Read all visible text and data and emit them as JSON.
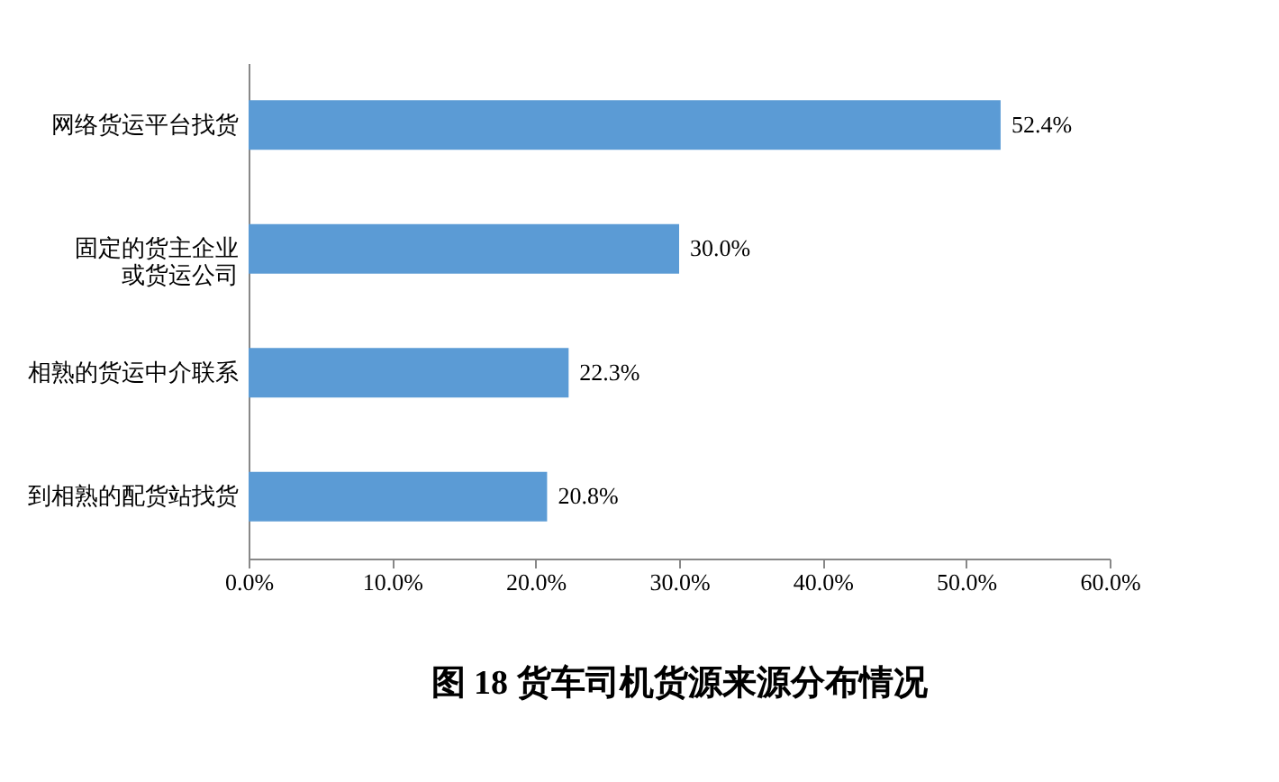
{
  "chart_data": {
    "type": "bar",
    "orientation": "horizontal",
    "title": "图 18  货车司机货源来源分布情况",
    "categories": [
      "网络货运平台找货",
      "固定的货主企业或货运公司",
      "相熟的货运中介联系",
      "到相熟的配货站找货"
    ],
    "values": [
      52.4,
      30.0,
      22.3,
      20.8
    ],
    "value_labels": [
      "52.4%",
      "30.0%",
      "22.3%",
      "20.8%"
    ],
    "color": "#5b9bd5",
    "xlim": [
      0,
      60
    ],
    "xticks": [
      {
        "value": 0,
        "label": "0.0%"
      },
      {
        "value": 10,
        "label": "10.0%"
      },
      {
        "value": 20,
        "label": "20.0%"
      },
      {
        "value": 30,
        "label": "30.0%"
      },
      {
        "value": 40,
        "label": "40.0%"
      },
      {
        "value": 50,
        "label": "50.0%"
      },
      {
        "value": 60,
        "label": "60.0%"
      }
    ],
    "grid": false
  }
}
